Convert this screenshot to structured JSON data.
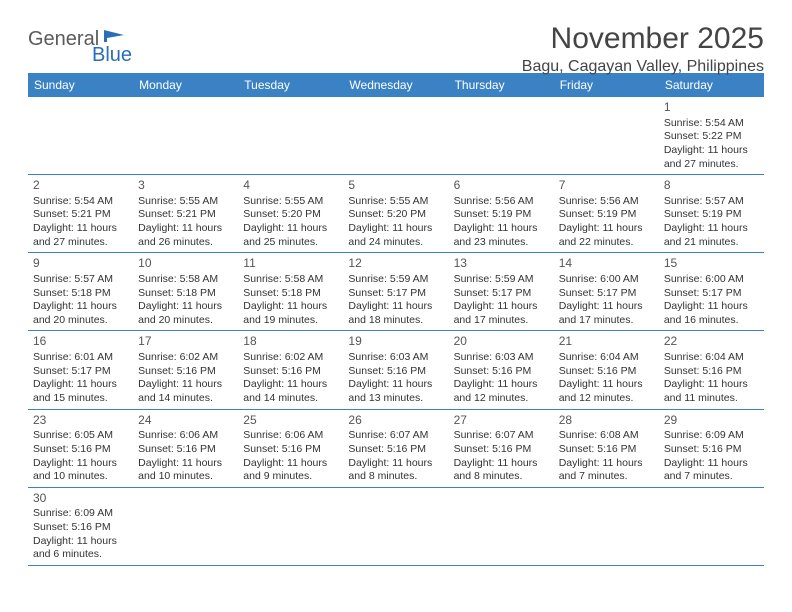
{
  "logo": {
    "general": "General",
    "blue": "Blue"
  },
  "title": "November 2025",
  "location": "Bagu, Cagayan Valley, Philippines",
  "weekdays": [
    "Sunday",
    "Monday",
    "Tuesday",
    "Wednesday",
    "Thursday",
    "Friday",
    "Saturday"
  ],
  "colors": {
    "header_bg": "#3a82c4",
    "header_text": "#ffffff",
    "border": "#3a82c4",
    "logo_gray": "#5a5a5a",
    "logo_blue": "#2a6eb8",
    "text": "#333333"
  },
  "weeks": [
    [
      null,
      null,
      null,
      null,
      null,
      null,
      {
        "n": "1",
        "sr": "Sunrise: 5:54 AM",
        "ss": "Sunset: 5:22 PM",
        "d1": "Daylight: 11 hours",
        "d2": "and 27 minutes."
      }
    ],
    [
      {
        "n": "2",
        "sr": "Sunrise: 5:54 AM",
        "ss": "Sunset: 5:21 PM",
        "d1": "Daylight: 11 hours",
        "d2": "and 27 minutes."
      },
      {
        "n": "3",
        "sr": "Sunrise: 5:55 AM",
        "ss": "Sunset: 5:21 PM",
        "d1": "Daylight: 11 hours",
        "d2": "and 26 minutes."
      },
      {
        "n": "4",
        "sr": "Sunrise: 5:55 AM",
        "ss": "Sunset: 5:20 PM",
        "d1": "Daylight: 11 hours",
        "d2": "and 25 minutes."
      },
      {
        "n": "5",
        "sr": "Sunrise: 5:55 AM",
        "ss": "Sunset: 5:20 PM",
        "d1": "Daylight: 11 hours",
        "d2": "and 24 minutes."
      },
      {
        "n": "6",
        "sr": "Sunrise: 5:56 AM",
        "ss": "Sunset: 5:19 PM",
        "d1": "Daylight: 11 hours",
        "d2": "and 23 minutes."
      },
      {
        "n": "7",
        "sr": "Sunrise: 5:56 AM",
        "ss": "Sunset: 5:19 PM",
        "d1": "Daylight: 11 hours",
        "d2": "and 22 minutes."
      },
      {
        "n": "8",
        "sr": "Sunrise: 5:57 AM",
        "ss": "Sunset: 5:19 PM",
        "d1": "Daylight: 11 hours",
        "d2": "and 21 minutes."
      }
    ],
    [
      {
        "n": "9",
        "sr": "Sunrise: 5:57 AM",
        "ss": "Sunset: 5:18 PM",
        "d1": "Daylight: 11 hours",
        "d2": "and 20 minutes."
      },
      {
        "n": "10",
        "sr": "Sunrise: 5:58 AM",
        "ss": "Sunset: 5:18 PM",
        "d1": "Daylight: 11 hours",
        "d2": "and 20 minutes."
      },
      {
        "n": "11",
        "sr": "Sunrise: 5:58 AM",
        "ss": "Sunset: 5:18 PM",
        "d1": "Daylight: 11 hours",
        "d2": "and 19 minutes."
      },
      {
        "n": "12",
        "sr": "Sunrise: 5:59 AM",
        "ss": "Sunset: 5:17 PM",
        "d1": "Daylight: 11 hours",
        "d2": "and 18 minutes."
      },
      {
        "n": "13",
        "sr": "Sunrise: 5:59 AM",
        "ss": "Sunset: 5:17 PM",
        "d1": "Daylight: 11 hours",
        "d2": "and 17 minutes."
      },
      {
        "n": "14",
        "sr": "Sunrise: 6:00 AM",
        "ss": "Sunset: 5:17 PM",
        "d1": "Daylight: 11 hours",
        "d2": "and 17 minutes."
      },
      {
        "n": "15",
        "sr": "Sunrise: 6:00 AM",
        "ss": "Sunset: 5:17 PM",
        "d1": "Daylight: 11 hours",
        "d2": "and 16 minutes."
      }
    ],
    [
      {
        "n": "16",
        "sr": "Sunrise: 6:01 AM",
        "ss": "Sunset: 5:17 PM",
        "d1": "Daylight: 11 hours",
        "d2": "and 15 minutes."
      },
      {
        "n": "17",
        "sr": "Sunrise: 6:02 AM",
        "ss": "Sunset: 5:16 PM",
        "d1": "Daylight: 11 hours",
        "d2": "and 14 minutes."
      },
      {
        "n": "18",
        "sr": "Sunrise: 6:02 AM",
        "ss": "Sunset: 5:16 PM",
        "d1": "Daylight: 11 hours",
        "d2": "and 14 minutes."
      },
      {
        "n": "19",
        "sr": "Sunrise: 6:03 AM",
        "ss": "Sunset: 5:16 PM",
        "d1": "Daylight: 11 hours",
        "d2": "and 13 minutes."
      },
      {
        "n": "20",
        "sr": "Sunrise: 6:03 AM",
        "ss": "Sunset: 5:16 PM",
        "d1": "Daylight: 11 hours",
        "d2": "and 12 minutes."
      },
      {
        "n": "21",
        "sr": "Sunrise: 6:04 AM",
        "ss": "Sunset: 5:16 PM",
        "d1": "Daylight: 11 hours",
        "d2": "and 12 minutes."
      },
      {
        "n": "22",
        "sr": "Sunrise: 6:04 AM",
        "ss": "Sunset: 5:16 PM",
        "d1": "Daylight: 11 hours",
        "d2": "and 11 minutes."
      }
    ],
    [
      {
        "n": "23",
        "sr": "Sunrise: 6:05 AM",
        "ss": "Sunset: 5:16 PM",
        "d1": "Daylight: 11 hours",
        "d2": "and 10 minutes."
      },
      {
        "n": "24",
        "sr": "Sunrise: 6:06 AM",
        "ss": "Sunset: 5:16 PM",
        "d1": "Daylight: 11 hours",
        "d2": "and 10 minutes."
      },
      {
        "n": "25",
        "sr": "Sunrise: 6:06 AM",
        "ss": "Sunset: 5:16 PM",
        "d1": "Daylight: 11 hours",
        "d2": "and 9 minutes."
      },
      {
        "n": "26",
        "sr": "Sunrise: 6:07 AM",
        "ss": "Sunset: 5:16 PM",
        "d1": "Daylight: 11 hours",
        "d2": "and 8 minutes."
      },
      {
        "n": "27",
        "sr": "Sunrise: 6:07 AM",
        "ss": "Sunset: 5:16 PM",
        "d1": "Daylight: 11 hours",
        "d2": "and 8 minutes."
      },
      {
        "n": "28",
        "sr": "Sunrise: 6:08 AM",
        "ss": "Sunset: 5:16 PM",
        "d1": "Daylight: 11 hours",
        "d2": "and 7 minutes."
      },
      {
        "n": "29",
        "sr": "Sunrise: 6:09 AM",
        "ss": "Sunset: 5:16 PM",
        "d1": "Daylight: 11 hours",
        "d2": "and 7 minutes."
      }
    ],
    [
      {
        "n": "30",
        "sr": "Sunrise: 6:09 AM",
        "ss": "Sunset: 5:16 PM",
        "d1": "Daylight: 11 hours",
        "d2": "and 6 minutes."
      },
      null,
      null,
      null,
      null,
      null,
      null
    ]
  ]
}
